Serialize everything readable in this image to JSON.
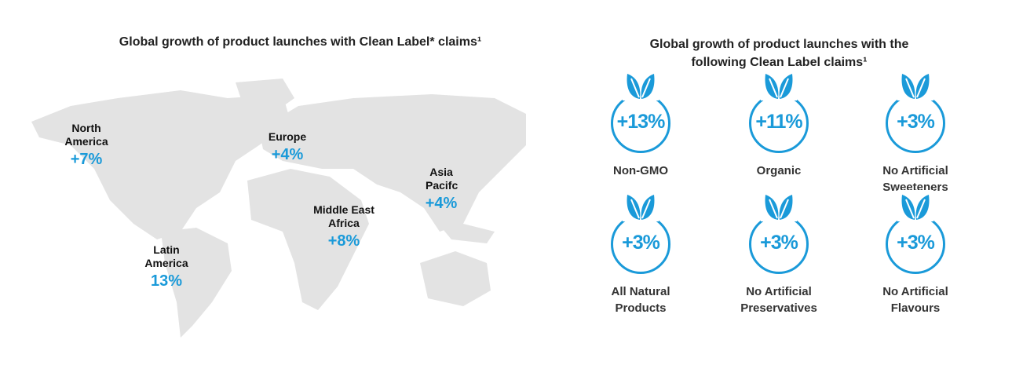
{
  "left": {
    "title": "Global growth of product launches with Clean Label* claims¹",
    "regions": [
      {
        "name": "North America",
        "value": "+7%"
      },
      {
        "name": "Europe",
        "value": "+4%"
      },
      {
        "name": "Asia Pacifc",
        "value": "+4%"
      },
      {
        "name": "Middle East Africa",
        "value": "+8%"
      },
      {
        "name": "Latin America",
        "value": "13%"
      }
    ]
  },
  "right": {
    "title_line1": "Global growth of product launches with the",
    "title_line2": "following Clean Label claims¹",
    "claims": [
      {
        "value": "+13%",
        "label_line1": "Non-GMO",
        "label_line2": ""
      },
      {
        "value": "+11%",
        "label_line1": "Organic",
        "label_line2": ""
      },
      {
        "value": "+3%",
        "label_line1": "No Artificial",
        "label_line2": "Sweeteners"
      },
      {
        "value": "+3%",
        "label_line1": "All Natural",
        "label_line2": "Products"
      },
      {
        "value": "+3%",
        "label_line1": "No Artificial",
        "label_line2": "Preservatives"
      },
      {
        "value": "+3%",
        "label_line1": "No Artificial",
        "label_line2": "Flavours"
      }
    ],
    "icon": "leaf-icon"
  },
  "colors": {
    "accent": "#1a9ad9",
    "map": "#e3e3e3"
  }
}
